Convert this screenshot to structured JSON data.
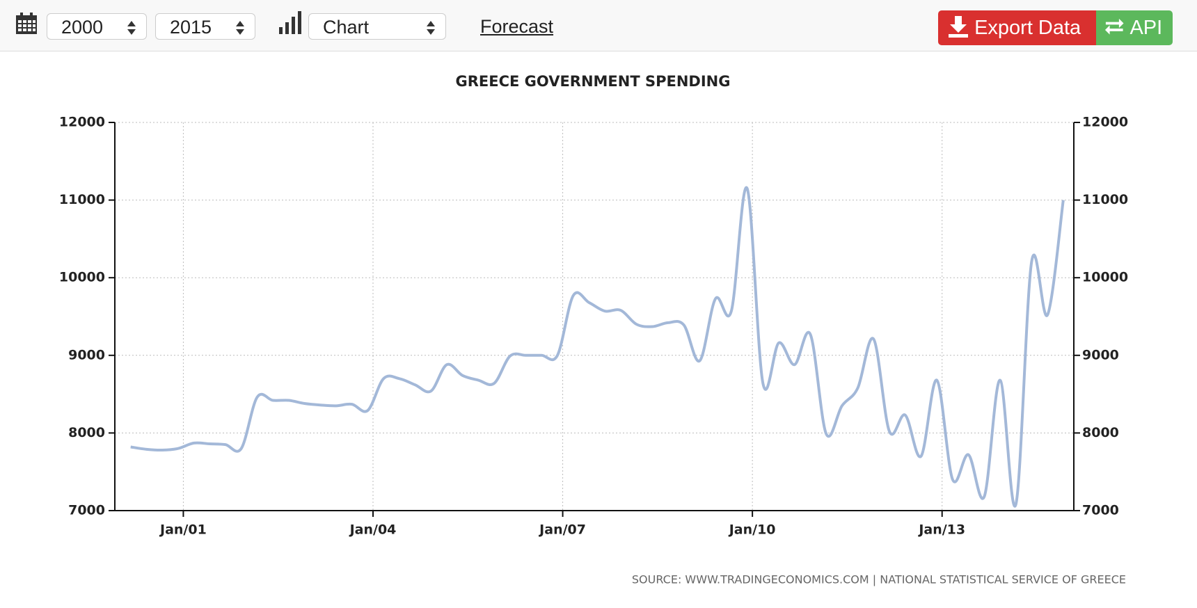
{
  "toolbar": {
    "start_year": "2000",
    "end_year": "2015",
    "view": "Chart",
    "forecast": "Forecast",
    "export": "Export Data",
    "api": "API"
  },
  "chart_data": {
    "type": "line",
    "title": "GREECE GOVERNMENT SPENDING",
    "source": "SOURCE:  WWW.TRADINGECONOMICS.COM  |  NATIONAL  STATISTICAL  SERVICE  OF  GREECE",
    "color": "#a3b8d8",
    "grid": true,
    "x": [
      "2000-03",
      "2000-06",
      "2000-09",
      "2000-12",
      "2001-03",
      "2001-06",
      "2001-09",
      "2001-12",
      "2002-03",
      "2002-06",
      "2002-09",
      "2002-12",
      "2003-03",
      "2003-06",
      "2003-09",
      "2003-12",
      "2004-03",
      "2004-06",
      "2004-09",
      "2004-12",
      "2005-03",
      "2005-06",
      "2005-09",
      "2005-12",
      "2006-03",
      "2006-06",
      "2006-09",
      "2006-12",
      "2007-03",
      "2007-06",
      "2007-09",
      "2007-12",
      "2008-03",
      "2008-06",
      "2008-09",
      "2008-12",
      "2009-03",
      "2009-06",
      "2009-09",
      "2009-12",
      "2010-03",
      "2010-06",
      "2010-09",
      "2010-12",
      "2011-03",
      "2011-06",
      "2011-09",
      "2011-12",
      "2012-03",
      "2012-06",
      "2012-09",
      "2012-12",
      "2013-03",
      "2013-06",
      "2013-09",
      "2013-12",
      "2014-03",
      "2014-06",
      "2014-09",
      "2014-12"
    ],
    "values": [
      7820,
      7790,
      7780,
      7800,
      7870,
      7860,
      7850,
      7800,
      8460,
      8420,
      8420,
      8380,
      8360,
      8350,
      8370,
      8290,
      8700,
      8700,
      8620,
      8540,
      8880,
      8740,
      8680,
      8640,
      8990,
      9000,
      9000,
      9000,
      9770,
      9680,
      9570,
      9580,
      9400,
      9370,
      9420,
      9390,
      8930,
      9730,
      9570,
      11150,
      8640,
      9160,
      8880,
      9270,
      7990,
      8350,
      8580,
      9210,
      8020,
      8230,
      7700,
      8680,
      7400,
      7720,
      7180,
      8680,
      7080,
      10210,
      9520,
      11000
    ],
    "xlim": [
      "1999-12",
      "2015-02"
    ],
    "xticks": [
      {
        "value": "2001-01",
        "label": "Jan/01"
      },
      {
        "value": "2004-01",
        "label": "Jan/04"
      },
      {
        "value": "2007-01",
        "label": "Jan/07"
      },
      {
        "value": "2010-01",
        "label": "Jan/10"
      },
      {
        "value": "2013-01",
        "label": "Jan/13"
      }
    ],
    "ylim": [
      7000,
      12000
    ],
    "yticks": [
      7000,
      8000,
      9000,
      10000,
      11000,
      12000
    ],
    "y2lim": [
      7000,
      12000
    ],
    "y2ticks": [
      7000,
      8000,
      9000,
      10000,
      11000,
      12000
    ]
  }
}
